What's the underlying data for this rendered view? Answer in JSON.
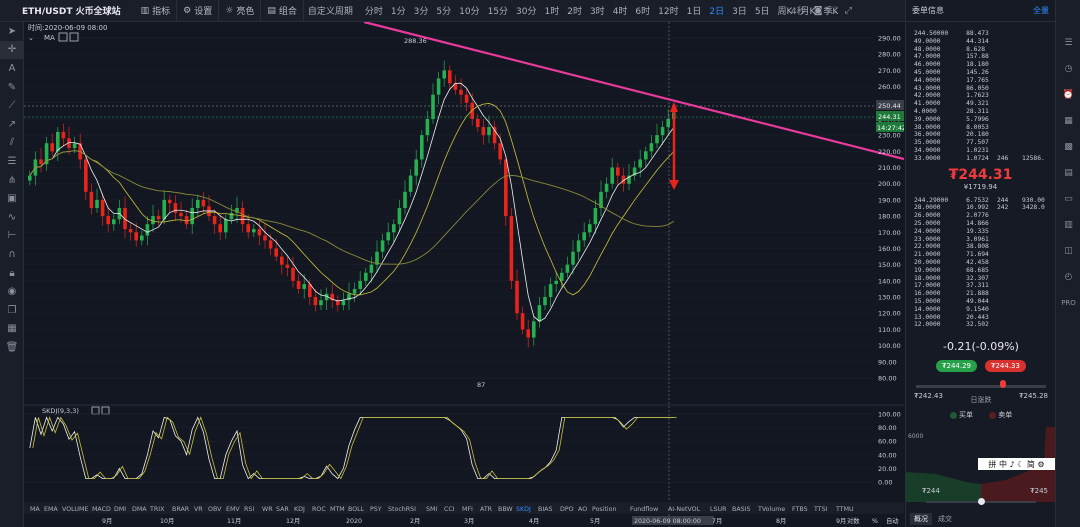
{
  "toolbar": {
    "pair": "ETH/USDT 火币全球站",
    "indicators": "指标",
    "settings": "设置",
    "theme": "亮色",
    "combo": "组合",
    "custom_period": "自定义周期",
    "timeframes": [
      "分时",
      "1分",
      "3分",
      "5分",
      "10分",
      "15分",
      "30分",
      "1时",
      "2时",
      "3时",
      "4时",
      "6时",
      "12时",
      "1日",
      "2日",
      "3日",
      "5日",
      "周K",
      "月K",
      "季K"
    ],
    "active_tf": "2日",
    "countdown": "4秒"
  },
  "chart": {
    "time_label": "时间:2020-06-09 08:00",
    "ma_label": "MA",
    "price_axis": [
      "290.00",
      "280.00",
      "270.00",
      "260.00",
      "250.00",
      "240.00",
      "230.00",
      "220.00",
      "210.00",
      "200.00",
      "190.00",
      "180.00",
      "170.00",
      "160.00",
      "150.00",
      "140.00",
      "130.00",
      "120.00",
      "110.00",
      "100.00",
      "90.00",
      "80.00"
    ],
    "tag_high": "250.44",
    "tag_last": "244.31",
    "tag_time": "14:27:42",
    "annot_high": "288.36",
    "annot_low": "87",
    "kdj_label": "SKDJ(9,3,3)",
    "kdj_axis": [
      "100.00",
      "80.00",
      "60.00",
      "40.00",
      "20.00",
      "0.00"
    ],
    "indicators": [
      "MA",
      "EMA",
      "VOLUME",
      "MACD",
      "DMI",
      "DMA",
      "TRIX",
      "BRAR",
      "VR",
      "OBV",
      "EMV",
      "RSI",
      "WR",
      "SAR",
      "KDJ",
      "ROC",
      "MTM",
      "BOLL",
      "PSY",
      "StochRSI",
      "SMI",
      "CCI",
      "MFI",
      "ATR",
      "BBW",
      "SKDJ",
      "BIAS",
      "DPO",
      "AO",
      "Position",
      "Fundflow",
      "AI-NetVOL",
      "LSUR",
      "BASIS",
      "TVolume",
      "FTBS",
      "TTSI",
      "TTMU"
    ],
    "active_indicator": "SKDJ",
    "months": [
      "9月",
      "10月",
      "11月",
      "12月",
      "2020",
      "2月",
      "3月",
      "4月",
      "5月",
      "2020-06-09 08:00:00",
      "7月",
      "8月",
      "9月",
      "对数",
      "%",
      "自动"
    ]
  },
  "chart_data": {
    "type": "candlestick",
    "title": "ETH/USDT 2日",
    "ylim": [
      80,
      295
    ],
    "x_range": [
      "2019-08",
      "2020-09"
    ],
    "high_label": 288.36,
    "low_label": 87,
    "last_price": 244.31,
    "recent_high": 250.44,
    "closes": [
      205,
      215,
      212,
      225,
      220,
      232,
      228,
      222,
      225,
      215,
      195,
      185,
      190,
      180,
      175,
      178,
      185,
      172,
      170,
      165,
      168,
      175,
      180,
      178,
      190,
      188,
      182,
      180,
      175,
      185,
      190,
      186,
      180,
      175,
      170,
      178,
      182,
      185,
      175,
      170,
      172,
      168,
      165,
      160,
      155,
      150,
      148,
      140,
      135,
      138,
      130,
      125,
      128,
      132,
      128,
      125,
      128,
      132,
      135,
      140,
      145,
      150,
      158,
      165,
      170,
      175,
      185,
      195,
      205,
      215,
      230,
      240,
      255,
      265,
      270,
      262,
      258,
      255,
      250,
      240,
      235,
      230,
      235,
      225,
      215,
      180,
      140,
      120,
      110,
      105,
      115,
      125,
      130,
      138,
      140,
      145,
      150,
      158,
      165,
      170,
      175,
      185,
      195,
      200,
      210,
      205,
      200,
      205,
      210,
      215,
      220,
      225,
      230,
      235,
      240,
      244
    ]
  },
  "orderbook": {
    "header": "委单信息",
    "all": "全量",
    "asks": [
      [
        "244.50000",
        "88.473",
        "",
        ""
      ],
      [
        "49.0000",
        "44.314",
        "",
        ""
      ],
      [
        "48.0000",
        "8.628",
        "",
        ""
      ],
      [
        "47.0000",
        "157.88",
        "",
        ""
      ],
      [
        "46.0000",
        "18.180",
        "",
        ""
      ],
      [
        "45.0000",
        "145.26",
        "",
        ""
      ],
      [
        "44.0000",
        "17.765",
        "",
        ""
      ],
      [
        "43.0000",
        "86.050",
        "",
        ""
      ],
      [
        "42.0000",
        "1.7623",
        "",
        ""
      ],
      [
        "41.0000",
        "49.321",
        "",
        ""
      ],
      [
        "4.0000",
        "28.311",
        "",
        ""
      ],
      [
        "39.0000",
        "5.7996",
        "",
        ""
      ],
      [
        "38.0000",
        "8.0053",
        "",
        ""
      ],
      [
        "36.0000",
        "20.180",
        "",
        ""
      ],
      [
        "35.0000",
        "77.507",
        "",
        ""
      ],
      [
        "34.0000",
        "1.0231",
        "",
        ""
      ],
      [
        "33.0000",
        "1.0724",
        "246",
        "12586."
      ]
    ],
    "last_price": "₮244.31",
    "last_cny": "¥1719.94",
    "bids": [
      [
        "244.29000",
        "6.7532",
        "244",
        "930.00"
      ],
      [
        "28.0000",
        "10.992",
        "242",
        "3428.0"
      ],
      [
        "26.0000",
        "2.0776",
        "",
        ""
      ],
      [
        "25.0000",
        "14.866",
        "",
        ""
      ],
      [
        "24.0000",
        "19.335",
        "",
        ""
      ],
      [
        "23.0000",
        "3.0961",
        "",
        ""
      ],
      [
        "22.0000",
        "38.808",
        "",
        ""
      ],
      [
        "21.0000",
        "71.694",
        "",
        ""
      ],
      [
        "20.0000",
        "42.458",
        "",
        ""
      ],
      [
        "19.0000",
        "68.685",
        "",
        ""
      ],
      [
        "18.0000",
        "32.307",
        "",
        ""
      ],
      [
        "17.0000",
        "37.311",
        "",
        ""
      ],
      [
        "16.0000",
        "21.888",
        "",
        ""
      ],
      [
        "15.0000",
        "49.044",
        "",
        ""
      ],
      [
        "14.0000",
        "9.1540",
        "",
        ""
      ],
      [
        "13.0000",
        "20.443",
        "",
        ""
      ],
      [
        "12.0000",
        "32.502",
        "",
        ""
      ]
    ]
  },
  "ticker": {
    "change": "-0.21(-0.09%)",
    "bid_btn": "₮244.29",
    "ask_btn": "₮244.33",
    "low": "₮242.43",
    "high": "₮245.28",
    "range_label": "日涨跌",
    "buy": "买单",
    "sell": "卖单",
    "depth_label": "6000",
    "depth_low": "₮244",
    "depth_high": "₮245",
    "tab_overview": "概况",
    "tab_trades": "成交"
  },
  "ime": "拼 中 ♪ ☾ 简 ⚙"
}
